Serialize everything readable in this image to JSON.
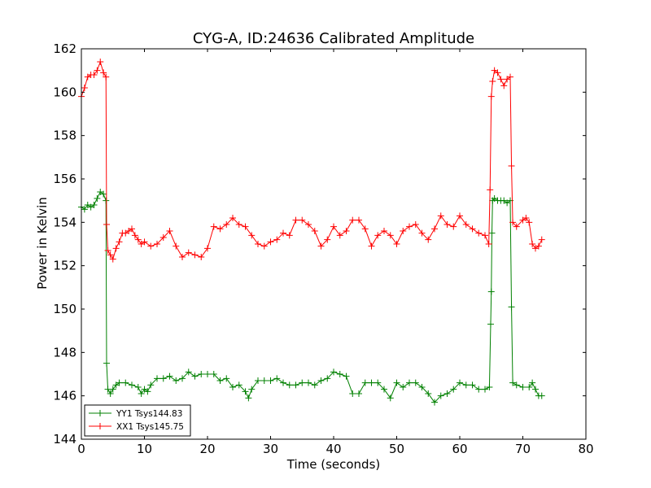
{
  "chart_data": {
    "type": "line",
    "title": "CYG-A, ID:24636 Calibrated Amplitude",
    "xlabel": "Time (seconds)",
    "ylabel": "Power in Kelvin",
    "xlim": [
      0,
      80
    ],
    "ylim": [
      144,
      162
    ],
    "xticks": [
      "0",
      "10",
      "20",
      "30",
      "40",
      "50",
      "60",
      "70",
      "80"
    ],
    "yticks": [
      "144",
      "146",
      "148",
      "150",
      "152",
      "154",
      "156",
      "158",
      "160",
      "162"
    ],
    "grid": false,
    "legend_position": "lower-left",
    "marker": "+",
    "series": [
      {
        "name": "YY1 Tsys144.83",
        "color": "#008000",
        "points": [
          [
            0,
            154.7
          ],
          [
            0.5,
            154.6
          ],
          [
            1,
            154.8
          ],
          [
            1.5,
            154.7
          ],
          [
            2,
            154.8
          ],
          [
            2.5,
            155.1
          ],
          [
            3,
            155.4
          ],
          [
            3.5,
            155.3
          ],
          [
            3.9,
            155.0
          ],
          [
            4.0,
            147.5
          ],
          [
            4.2,
            146.3
          ],
          [
            4.6,
            146.1
          ],
          [
            5,
            146.3
          ],
          [
            5.5,
            146.5
          ],
          [
            6,
            146.6
          ],
          [
            7,
            146.6
          ],
          [
            8,
            146.5
          ],
          [
            9,
            146.4
          ],
          [
            9.5,
            146.1
          ],
          [
            10,
            146.3
          ],
          [
            10.5,
            146.2
          ],
          [
            11,
            146.5
          ],
          [
            12,
            146.8
          ],
          [
            13,
            146.8
          ],
          [
            14,
            146.9
          ],
          [
            15,
            146.7
          ],
          [
            16,
            146.8
          ],
          [
            17,
            147.1
          ],
          [
            18,
            146.9
          ],
          [
            19,
            147.0
          ],
          [
            20,
            147.0
          ],
          [
            21,
            147.0
          ],
          [
            22,
            146.7
          ],
          [
            23,
            146.8
          ],
          [
            24,
            146.4
          ],
          [
            25,
            146.5
          ],
          [
            26,
            146.2
          ],
          [
            26.5,
            145.9
          ],
          [
            27,
            146.3
          ],
          [
            28,
            146.7
          ],
          [
            29,
            146.7
          ],
          [
            30,
            146.7
          ],
          [
            31,
            146.8
          ],
          [
            32,
            146.6
          ],
          [
            33,
            146.5
          ],
          [
            34,
            146.5
          ],
          [
            35,
            146.6
          ],
          [
            36,
            146.6
          ],
          [
            37,
            146.5
          ],
          [
            38,
            146.7
          ],
          [
            39,
            146.8
          ],
          [
            40,
            147.1
          ],
          [
            41,
            147.0
          ],
          [
            42,
            146.9
          ],
          [
            43,
            146.1
          ],
          [
            44,
            146.1
          ],
          [
            45,
            146.6
          ],
          [
            46,
            146.6
          ],
          [
            47,
            146.6
          ],
          [
            48,
            146.3
          ],
          [
            49,
            145.9
          ],
          [
            50,
            146.6
          ],
          [
            51,
            146.4
          ],
          [
            52,
            146.6
          ],
          [
            53,
            146.6
          ],
          [
            54,
            146.4
          ],
          [
            55,
            146.1
          ],
          [
            56,
            145.7
          ],
          [
            57,
            146.0
          ],
          [
            58,
            146.1
          ],
          [
            59,
            146.3
          ],
          [
            60,
            146.6
          ],
          [
            61,
            146.5
          ],
          [
            62,
            146.5
          ],
          [
            63,
            146.3
          ],
          [
            64,
            146.3
          ],
          [
            64.7,
            146.4
          ],
          [
            64.9,
            149.3
          ],
          [
            65.0,
            150.8
          ],
          [
            65.1,
            153.5
          ],
          [
            65.2,
            155.0
          ],
          [
            65.5,
            155.1
          ],
          [
            66,
            155.0
          ],
          [
            66.5,
            155.0
          ],
          [
            67,
            155.0
          ],
          [
            67.5,
            154.9
          ],
          [
            68,
            155.0
          ],
          [
            68.2,
            150.1
          ],
          [
            68.4,
            146.6
          ],
          [
            69,
            146.5
          ],
          [
            70,
            146.4
          ],
          [
            71,
            146.4
          ],
          [
            71.5,
            146.6
          ],
          [
            72,
            146.3
          ],
          [
            72.5,
            146.0
          ],
          [
            73,
            146.0
          ]
        ]
      },
      {
        "name": "XX1 Tsys145.75",
        "color": "#ff0000",
        "points": [
          [
            0,
            159.8
          ],
          [
            0.5,
            160.2
          ],
          [
            1,
            160.7
          ],
          [
            1.5,
            160.8
          ],
          [
            2,
            160.8
          ],
          [
            2.5,
            161.0
          ],
          [
            3,
            161.4
          ],
          [
            3.5,
            160.9
          ],
          [
            3.9,
            160.7
          ],
          [
            4.0,
            153.9
          ],
          [
            4.2,
            152.7
          ],
          [
            4.6,
            152.5
          ],
          [
            5,
            152.3
          ],
          [
            5.5,
            152.8
          ],
          [
            6,
            153.1
          ],
          [
            6.5,
            153.5
          ],
          [
            7,
            153.5
          ],
          [
            7.5,
            153.6
          ],
          [
            8,
            153.7
          ],
          [
            8.5,
            153.4
          ],
          [
            9,
            153.2
          ],
          [
            9.5,
            153.0
          ],
          [
            10,
            153.1
          ],
          [
            11,
            152.9
          ],
          [
            12,
            153.0
          ],
          [
            13,
            153.3
          ],
          [
            14,
            153.6
          ],
          [
            15,
            152.9
          ],
          [
            16,
            152.4
          ],
          [
            17,
            152.6
          ],
          [
            18,
            152.5
          ],
          [
            19,
            152.4
          ],
          [
            20,
            152.8
          ],
          [
            21,
            153.8
          ],
          [
            22,
            153.7
          ],
          [
            23,
            153.9
          ],
          [
            24,
            154.2
          ],
          [
            25,
            153.9
          ],
          [
            26,
            153.8
          ],
          [
            27,
            153.4
          ],
          [
            28,
            153.0
          ],
          [
            29,
            152.9
          ],
          [
            30,
            153.1
          ],
          [
            31,
            153.2
          ],
          [
            32,
            153.5
          ],
          [
            33,
            153.4
          ],
          [
            34,
            154.1
          ],
          [
            35,
            154.1
          ],
          [
            36,
            153.9
          ],
          [
            37,
            153.6
          ],
          [
            38,
            152.9
          ],
          [
            39,
            153.2
          ],
          [
            40,
            153.8
          ],
          [
            41,
            153.4
          ],
          [
            42,
            153.6
          ],
          [
            43,
            154.1
          ],
          [
            44,
            154.1
          ],
          [
            45,
            153.7
          ],
          [
            46,
            152.9
          ],
          [
            47,
            153.4
          ],
          [
            48,
            153.6
          ],
          [
            49,
            153.4
          ],
          [
            50,
            153.0
          ],
          [
            51,
            153.6
          ],
          [
            52,
            153.8
          ],
          [
            53,
            153.9
          ],
          [
            54,
            153.5
          ],
          [
            55,
            153.2
          ],
          [
            56,
            153.7
          ],
          [
            57,
            154.3
          ],
          [
            58,
            153.9
          ],
          [
            59,
            153.8
          ],
          [
            60,
            154.3
          ],
          [
            61,
            153.9
          ],
          [
            62,
            153.7
          ],
          [
            63,
            153.5
          ],
          [
            64,
            153.4
          ],
          [
            64.6,
            153.0
          ],
          [
            64.8,
            155.5
          ],
          [
            65.0,
            159.8
          ],
          [
            65.2,
            160.5
          ],
          [
            65.5,
            161.0
          ],
          [
            66,
            160.9
          ],
          [
            66.5,
            160.6
          ],
          [
            67,
            160.3
          ],
          [
            67.5,
            160.6
          ],
          [
            68,
            160.7
          ],
          [
            68.2,
            156.6
          ],
          [
            68.4,
            154.0
          ],
          [
            69,
            153.8
          ],
          [
            70,
            154.1
          ],
          [
            70.5,
            154.2
          ],
          [
            71,
            154.0
          ],
          [
            71.5,
            153.0
          ],
          [
            72,
            152.8
          ],
          [
            72.5,
            152.9
          ],
          [
            73,
            153.2
          ]
        ]
      }
    ]
  }
}
